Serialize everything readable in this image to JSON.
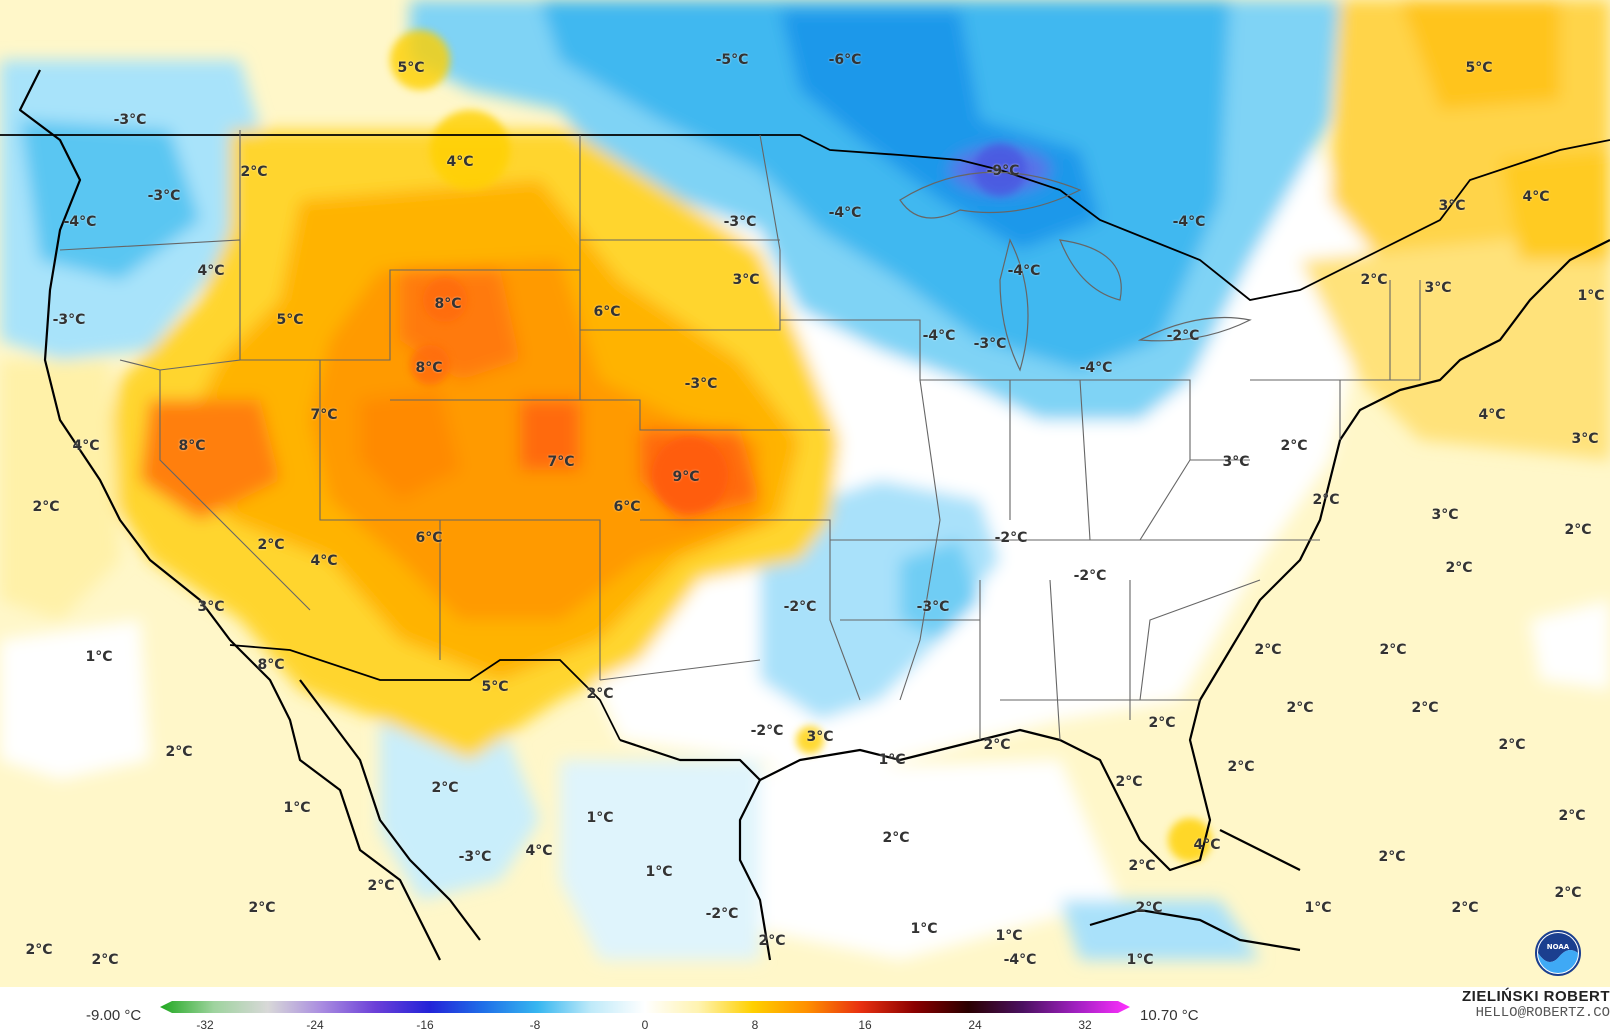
{
  "map": {
    "legend": {
      "min_label": "-9.00 °C",
      "max_label": "10.70 °C",
      "ticks": [
        "-32",
        "-24",
        "-16",
        "-8",
        "0",
        "8",
        "16",
        "24",
        "32"
      ],
      "stops": [
        "#1fa81f",
        "#9ed39e",
        "#d8d8d8",
        "#a98ce0",
        "#6b3fd8",
        "#2323d8",
        "#1f6fe8",
        "#36b6f0",
        "#bfeaf9",
        "#ffffff",
        "#fff3b0",
        "#ffd000",
        "#ff9000",
        "#e83010",
        "#8b0000",
        "#2a0000",
        "#4a1060",
        "#a020c0",
        "#ff30ff"
      ]
    },
    "credit": {
      "name": "ZIELIŃSKI ROBERT",
      "email": "HELLO@ROBERTZ.CO"
    },
    "logo": "noaa-logo",
    "colors": {
      "warm_light": "#fff3b0",
      "warm_mid": "#ffd000",
      "warm_strong": "#ff9a00",
      "hot": "#ff5a10",
      "cold_light": "#c8ecfb",
      "cold_mid": "#5cc6f2",
      "cold_strong": "#1fa0ee",
      "coldest": "#5a70e8",
      "border": "#000000",
      "state_line": "#666666"
    },
    "labels": [
      {
        "t": "5°C"
      },
      {
        "t": "-5°C"
      },
      {
        "t": "-6°C"
      },
      {
        "t": "5°C"
      },
      {
        "t": "-3°C"
      },
      {
        "t": "4°C"
      },
      {
        "t": "2°C"
      },
      {
        "t": "-9°C"
      },
      {
        "t": "-3°C"
      },
      {
        "t": "-4°C"
      },
      {
        "t": "-3°C"
      },
      {
        "t": "-4°C"
      },
      {
        "t": "-4°C"
      },
      {
        "t": "4°C"
      },
      {
        "t": "3°C"
      },
      {
        "t": "4°C"
      },
      {
        "t": "3°C"
      },
      {
        "t": "-4°C"
      },
      {
        "t": "2°C"
      },
      {
        "t": "3°C"
      },
      {
        "t": "1°C"
      },
      {
        "t": "5°C"
      },
      {
        "t": "8°C"
      },
      {
        "t": "6°C"
      },
      {
        "t": "-3°C"
      },
      {
        "t": "-4°C"
      },
      {
        "t": "-3°C"
      },
      {
        "t": "-2°C"
      },
      {
        "t": "8°C"
      },
      {
        "t": "-3°C"
      },
      {
        "t": "-4°C"
      },
      {
        "t": "4°C"
      },
      {
        "t": "7°C"
      },
      {
        "t": "4°C"
      },
      {
        "t": "3°C"
      },
      {
        "t": "8°C"
      },
      {
        "t": "7°C"
      },
      {
        "t": "9°C"
      },
      {
        "t": "2°C"
      },
      {
        "t": "3°C"
      },
      {
        "t": "2°C"
      },
      {
        "t": "6°C"
      },
      {
        "t": "2°C"
      },
      {
        "t": "3°C"
      },
      {
        "t": "2°C"
      },
      {
        "t": "6°C"
      },
      {
        "t": "-2°C"
      },
      {
        "t": "2°C"
      },
      {
        "t": "4°C"
      },
      {
        "t": "-2°C"
      },
      {
        "t": "2°C"
      },
      {
        "t": "3°C"
      },
      {
        "t": "-2°C"
      },
      {
        "t": "-3°C"
      },
      {
        "t": "1°C"
      },
      {
        "t": "2°C"
      },
      {
        "t": "8°C"
      },
      {
        "t": "2°C"
      },
      {
        "t": "5°C"
      },
      {
        "t": "2°C"
      },
      {
        "t": "2°C"
      },
      {
        "t": "2°C"
      },
      {
        "t": "-2°C"
      },
      {
        "t": "3°C"
      },
      {
        "t": "2°C"
      },
      {
        "t": "1°C"
      },
      {
        "t": "2°C"
      },
      {
        "t": "2°C"
      },
      {
        "t": "2°C"
      },
      {
        "t": "2°C"
      },
      {
        "t": "2°C"
      },
      {
        "t": "1°C"
      },
      {
        "t": "2°C"
      },
      {
        "t": "1°C"
      },
      {
        "t": "2°C"
      },
      {
        "t": "2°C"
      },
      {
        "t": "2°C"
      },
      {
        "t": "2°C"
      },
      {
        "t": "4°C"
      },
      {
        "t": "2°C"
      },
      {
        "t": "-3°C"
      },
      {
        "t": "4°C"
      },
      {
        "t": "1°C"
      },
      {
        "t": "2°C"
      },
      {
        "t": "2°C"
      },
      {
        "t": "2°C"
      },
      {
        "t": "2°C"
      },
      {
        "t": "2°C"
      },
      {
        "t": "1°C"
      },
      {
        "t": "-2°C"
      },
      {
        "t": "2°C"
      },
      {
        "t": "2°C"
      },
      {
        "t": "1°C"
      },
      {
        "t": "1°C"
      },
      {
        "t": "1°C"
      },
      {
        "t": "-4°C"
      }
    ]
  }
}
